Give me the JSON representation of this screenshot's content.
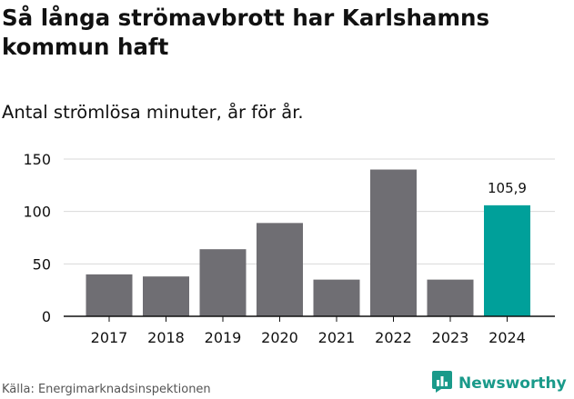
{
  "title": "Så långa strömavbrott har Karlshamns kommun haft",
  "subtitle": "Antal strömlösa minuter, år för år.",
  "source": "Källa: Energimarknadsinspektionen",
  "brand": {
    "name": "Newsworthy",
    "color": "#1a9a8a",
    "icon": "newsworthy-chart-icon"
  },
  "colors": {
    "bar": "#6f6e73",
    "highlight": "#00a09a",
    "grid": "#d9d9d9",
    "axis": "#111111"
  },
  "chart_data": {
    "type": "bar",
    "categories": [
      "2017",
      "2018",
      "2019",
      "2020",
      "2021",
      "2022",
      "2023",
      "2024"
    ],
    "values": [
      40,
      38,
      64,
      89,
      35,
      140,
      35,
      105.9
    ],
    "highlight_index": 7,
    "data_labels": [
      null,
      null,
      null,
      null,
      null,
      null,
      null,
      "105,9"
    ],
    "y_ticks": [
      0,
      50,
      100,
      150
    ],
    "ylim": [
      0,
      150
    ],
    "grid": true,
    "legend": "none"
  }
}
